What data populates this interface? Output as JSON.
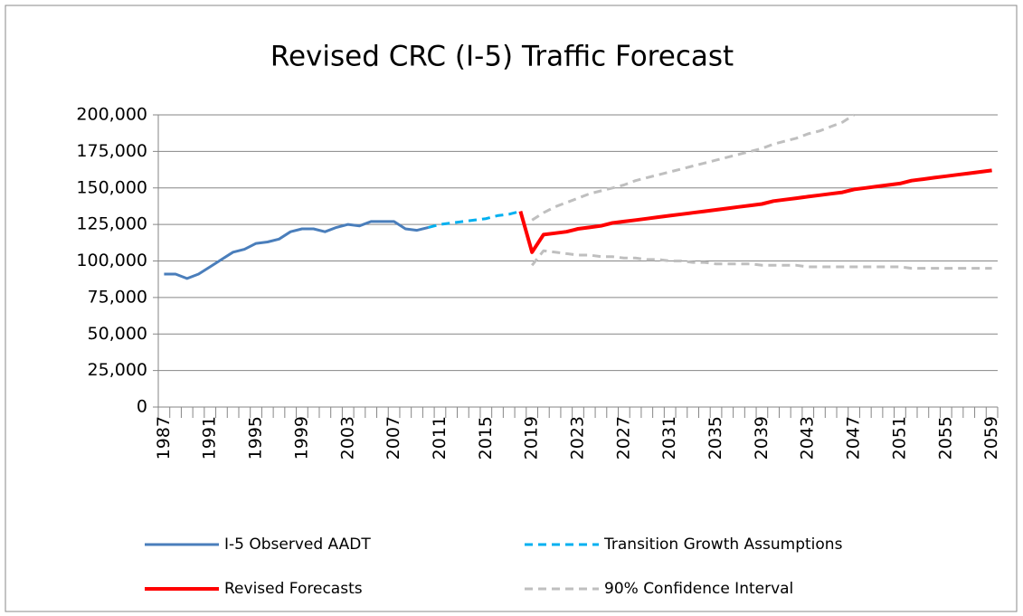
{
  "chart_data": {
    "type": "line",
    "title": "Revised CRC (I-5) Traffic Forecast",
    "categories": [
      "1987",
      null,
      null,
      null,
      "1991",
      null,
      null,
      null,
      "1995",
      null,
      null,
      null,
      "1999",
      null,
      null,
      null,
      "2003",
      null,
      null,
      null,
      "2007",
      null,
      null,
      null,
      "2011",
      null,
      null,
      null,
      "2015",
      null,
      null,
      null,
      "2019",
      null,
      null,
      null,
      "2023",
      null,
      null,
      null,
      "2027",
      null,
      null,
      null,
      "2031",
      null,
      null,
      null,
      "2035",
      null,
      null,
      null,
      "2039",
      null,
      null,
      null,
      "2043",
      null,
      null,
      null,
      "2047",
      null,
      null,
      null,
      "2051",
      null,
      null,
      null,
      "2055",
      null,
      null,
      null,
      "2059"
    ],
    "ylim": [
      0,
      200000
    ],
    "yticks": [
      0,
      {
        "value": 25000,
        "label": "25,000"
      },
      {
        "value": 50000,
        "label": "50,000"
      },
      {
        "value": 75000,
        "label": "75,000"
      },
      {
        "value": 100000,
        "label": "100,000"
      },
      {
        "value": 125000,
        "label": "125,000"
      },
      {
        "value": 150000,
        "label": "150,000"
      },
      {
        "value": 175000,
        "label": "175,000"
      },
      {
        "value": 200000,
        "label": "200,000"
      }
    ],
    "grid": true,
    "series": [
      {
        "name": "I-5 Observed AADT",
        "color": "#4a7ebb",
        "dashed": false,
        "values": [
          91000,
          91000,
          88000,
          91000,
          96000,
          101000,
          106000,
          108000,
          112000,
          113000,
          115000,
          120000,
          122000,
          122000,
          120000,
          123000,
          125000,
          124000,
          127000,
          127000,
          127000,
          122000,
          121000,
          123000,
          null,
          null,
          null,
          null,
          null,
          null,
          null,
          null,
          null,
          null,
          null,
          null,
          null,
          null,
          null,
          null,
          null,
          null,
          null,
          null,
          null,
          null,
          null,
          null,
          null,
          null,
          null,
          null,
          null,
          null,
          null,
          null,
          null,
          null,
          null,
          null,
          null,
          null,
          null,
          null,
          null,
          null,
          null,
          null,
          null,
          null,
          null,
          null,
          null
        ]
      },
      {
        "name": "Transition Growth Assumptions",
        "color": "#00b0f0",
        "dashed": true,
        "values": [
          null,
          null,
          null,
          null,
          null,
          null,
          null,
          null,
          null,
          null,
          null,
          null,
          null,
          null,
          null,
          null,
          null,
          null,
          null,
          null,
          null,
          null,
          null,
          123000,
          125000,
          126000,
          127000,
          128000,
          129000,
          131000,
          132000,
          134000,
          null,
          null,
          null,
          null,
          null,
          null,
          null,
          null,
          null,
          null,
          null,
          null,
          null,
          null,
          null,
          null,
          null,
          null,
          null,
          null,
          null,
          null,
          null,
          null,
          null,
          null,
          null,
          null,
          null,
          null,
          null,
          null,
          null,
          null,
          null,
          null,
          null,
          null,
          null,
          null,
          null
        ]
      },
      {
        "name": "Revised Forecasts",
        "color": "#ff0000",
        "dashed": false,
        "values": [
          null,
          null,
          null,
          null,
          null,
          null,
          null,
          null,
          null,
          null,
          null,
          null,
          null,
          null,
          null,
          null,
          null,
          null,
          null,
          null,
          null,
          null,
          null,
          null,
          null,
          null,
          null,
          null,
          null,
          null,
          null,
          134000,
          106000,
          118000,
          119000,
          120000,
          122000,
          123000,
          124000,
          126000,
          127000,
          128000,
          129000,
          130000,
          131000,
          132000,
          133000,
          134000,
          135000,
          136000,
          137000,
          138000,
          139000,
          141000,
          142000,
          143000,
          144000,
          145000,
          146000,
          147000,
          149000,
          150000,
          151000,
          152000,
          153000,
          155000,
          156000,
          157000,
          158000,
          159000,
          160000,
          161000,
          162000
        ]
      },
      {
        "name": "90% Confidence Interval",
        "color": "#bfbfbf",
        "dashed": true,
        "upper": [
          null,
          null,
          null,
          null,
          null,
          null,
          null,
          null,
          null,
          null,
          null,
          null,
          null,
          null,
          null,
          null,
          null,
          null,
          null,
          null,
          null,
          null,
          null,
          null,
          null,
          null,
          null,
          null,
          null,
          null,
          null,
          null,
          128000,
          133000,
          137000,
          140000,
          143000,
          146000,
          148000,
          150000,
          152000,
          155000,
          157000,
          159000,
          161000,
          163000,
          165000,
          167000,
          169000,
          171000,
          173000,
          175000,
          177000,
          180000,
          182000,
          184000,
          187000,
          189000,
          192000,
          195000,
          200000,
          null,
          null,
          null,
          null,
          null,
          null,
          null,
          null,
          null,
          null,
          null,
          null
        ],
        "lower": [
          null,
          null,
          null,
          null,
          null,
          null,
          null,
          null,
          null,
          null,
          null,
          null,
          null,
          null,
          null,
          null,
          null,
          null,
          null,
          null,
          null,
          null,
          null,
          null,
          null,
          null,
          null,
          null,
          null,
          null,
          null,
          null,
          97000,
          107000,
          106000,
          105000,
          104000,
          104000,
          103000,
          103000,
          102000,
          102000,
          101000,
          101000,
          100000,
          100000,
          99000,
          99000,
          98000,
          98000,
          98000,
          98000,
          97000,
          97000,
          97000,
          97000,
          96000,
          96000,
          96000,
          96000,
          96000,
          96000,
          96000,
          96000,
          96000,
          95000,
          95000,
          95000,
          95000,
          95000,
          95000,
          95000,
          95000
        ]
      }
    ]
  }
}
